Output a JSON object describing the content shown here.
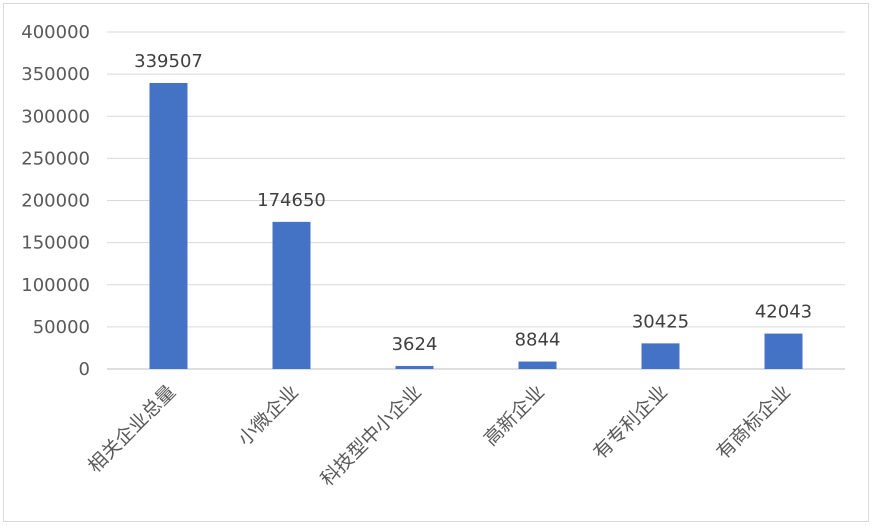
{
  "chart_data": {
    "type": "bar",
    "categories": [
      "相关企业总量",
      "小微企业",
      "科技型中小企业",
      "高新企业",
      "有专利企业",
      "有商标企业"
    ],
    "values": [
      339507,
      174650,
      3624,
      8844,
      30425,
      42043
    ],
    "y_ticks": [
      "0",
      "50000",
      "100000",
      "150000",
      "200000",
      "250000",
      "300000",
      "350000",
      "400000"
    ],
    "ylim": [
      0,
      400000
    ],
    "grid": true,
    "bar_color": "#4472C4",
    "gridline_color": "#d9d9d9",
    "data_labels": [
      "339507",
      "174650",
      "3624",
      "8844",
      "30425",
      "42043"
    ]
  }
}
